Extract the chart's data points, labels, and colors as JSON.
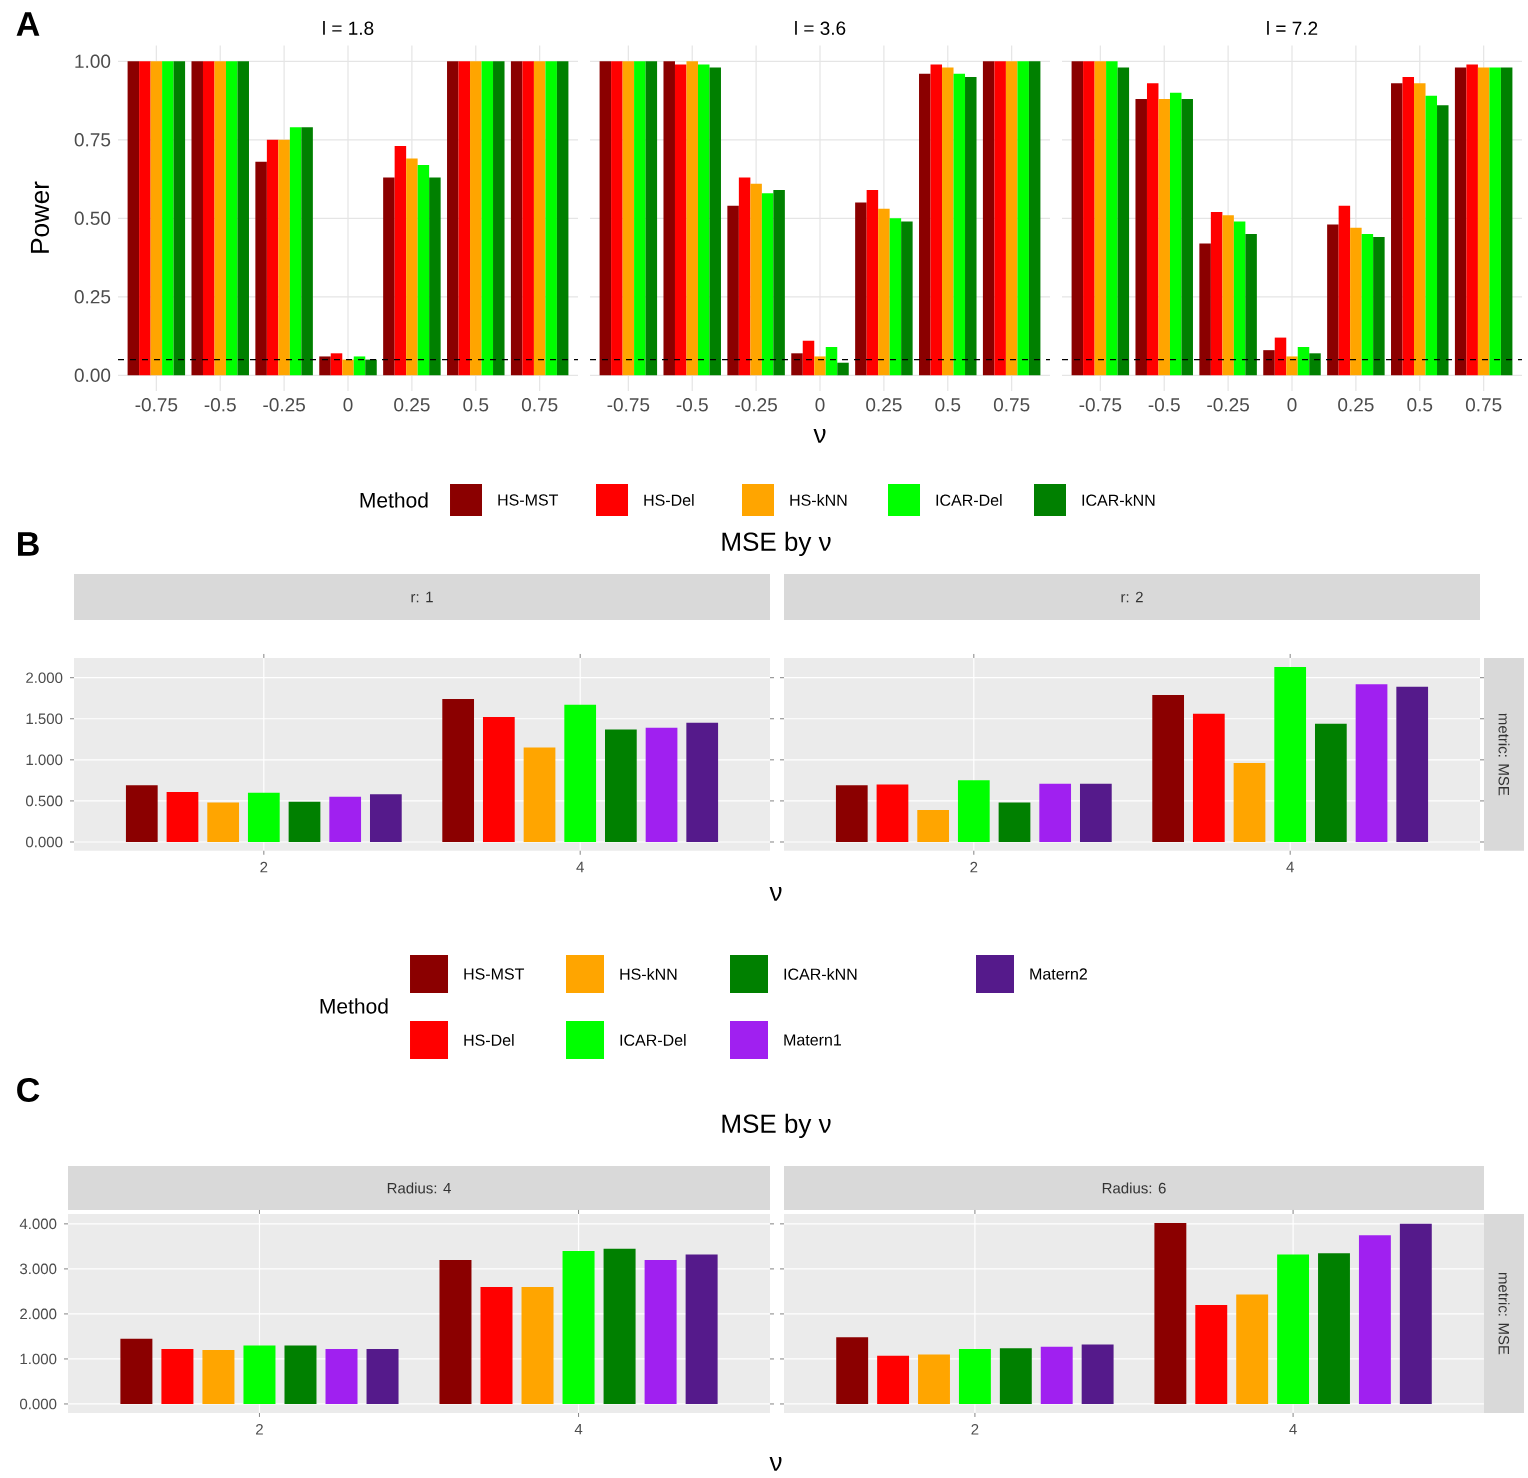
{
  "chart_data": [
    {
      "type": "bar",
      "title": "l = 1.8",
      "ylabel": "Power",
      "annotations": [
        "A"
      ],
      "categories": [
        "-0.75",
        "-0.5",
        "-0.25",
        "0",
        "0.25",
        "0.5",
        "0.75"
      ],
      "ylim": [
        -0.05,
        1.05
      ],
      "yticks": [
        {
          "value": 0,
          "label": "0.00"
        },
        {
          "value": 0.25,
          "label": "0.25"
        },
        {
          "value": 0.5,
          "label": "0.50"
        },
        {
          "value": 0.75,
          "label": "0.75"
        },
        {
          "value": 1,
          "label": "1.00"
        }
      ],
      "grid": true,
      "ref_lines": [
        {
          "axis": "y",
          "value": 0.05,
          "color": "#000000",
          "line_style": "dashed"
        }
      ],
      "series": [
        {
          "color": "#8b0000",
          "values": [
            1,
            1,
            0.68,
            0.06,
            0.63,
            1,
            1
          ]
        },
        {
          "color": "#ff0000",
          "values": [
            1,
            1,
            0.75,
            0.07,
            0.73,
            1,
            1
          ]
        },
        {
          "color": "#ffa500",
          "values": [
            1,
            1,
            0.75,
            0.05,
            0.69,
            1,
            1
          ]
        },
        {
          "color": "#00ff00",
          "values": [
            1,
            1,
            0.79,
            0.06,
            0.67,
            1,
            1
          ]
        },
        {
          "color": "#008000",
          "values": [
            1,
            1,
            0.79,
            0.05,
            0.63,
            1,
            1
          ]
        }
      ]
    },
    {
      "type": "bar",
      "title": "l = 3.6",
      "xlabel": "ν",
      "legend_title": "Method",
      "legend": "bottom",
      "tick_labels": "x",
      "categories": [
        "-0.75",
        "-0.5",
        "-0.25",
        "0",
        "0.25",
        "0.5",
        "0.75"
      ],
      "ylim": [
        -0.05,
        1.05
      ],
      "yticks": [
        {
          "value": 0,
          "label": null
        },
        {
          "value": 0.25,
          "label": null
        },
        {
          "value": 0.5,
          "label": null
        },
        {
          "value": 0.75,
          "label": null
        },
        {
          "value": 1,
          "label": null
        }
      ],
      "grid": true,
      "ref_lines": [
        {
          "axis": "y",
          "value": 0.05,
          "color": "#000000",
          "line_style": "dashed"
        }
      ],
      "series": [
        {
          "name": "HS-MST",
          "color": "#8b0000",
          "values": [
            1,
            1,
            0.54,
            0.07,
            0.55,
            0.96,
            1
          ]
        },
        {
          "name": "HS-Del",
          "color": "#ff0000",
          "values": [
            1,
            0.99,
            0.63,
            0.11,
            0.59,
            0.99,
            1
          ]
        },
        {
          "name": "HS-kNN",
          "color": "#ffa500",
          "values": [
            1,
            1,
            0.61,
            0.06,
            0.53,
            0.98,
            1
          ]
        },
        {
          "name": "ICAR-Del",
          "color": "#00ff00",
          "values": [
            1,
            0.99,
            0.58,
            0.09,
            0.5,
            0.96,
            1
          ]
        },
        {
          "name": "ICAR-kNN",
          "color": "#008000",
          "values": [
            1,
            0.98,
            0.59,
            0.04,
            0.49,
            0.95,
            1
          ]
        }
      ]
    },
    {
      "type": "bar",
      "title": "l = 7.2",
      "tick_labels": "x",
      "categories": [
        "-0.75",
        "-0.5",
        "-0.25",
        "0",
        "0.25",
        "0.5",
        "0.75"
      ],
      "ylim": [
        -0.05,
        1.05
      ],
      "yticks": [
        {
          "value": 0,
          "label": null
        },
        {
          "value": 0.25,
          "label": null
        },
        {
          "value": 0.5,
          "label": null
        },
        {
          "value": 0.75,
          "label": null
        },
        {
          "value": 1,
          "label": null
        }
      ],
      "grid": true,
      "ref_lines": [
        {
          "axis": "y",
          "value": 0.05,
          "color": "#000000",
          "line_style": "dashed"
        }
      ],
      "series": [
        {
          "color": "#8b0000",
          "values": [
            1,
            0.88,
            0.42,
            0.08,
            0.48,
            0.93,
            0.98
          ]
        },
        {
          "color": "#ff0000",
          "values": [
            1,
            0.93,
            0.52,
            0.12,
            0.54,
            0.95,
            0.99
          ]
        },
        {
          "color": "#ffa500",
          "values": [
            1,
            0.88,
            0.51,
            0.06,
            0.47,
            0.93,
            0.98
          ]
        },
        {
          "color": "#00ff00",
          "values": [
            1,
            0.9,
            0.49,
            0.09,
            0.45,
            0.89,
            0.98
          ]
        },
        {
          "color": "#008000",
          "values": [
            0.98,
            0.88,
            0.45,
            0.07,
            0.44,
            0.86,
            0.98
          ]
        }
      ]
    },
    {
      "type": "bar",
      "title": "MSE by ν",
      "subtitle": "r: 1",
      "xlabel": "ν",
      "legend_title": "Method",
      "legend": "bottom",
      "annotations": [
        "B"
      ],
      "categories": [
        "2",
        "4"
      ],
      "ylim": [
        -0.107,
        2.24
      ],
      "yticks": [
        {
          "value": 0,
          "label": "0.000"
        },
        {
          "value": 0.5,
          "label": "0.500"
        },
        {
          "value": 1,
          "label": "1.000"
        },
        {
          "value": 1.5,
          "label": "1.500"
        },
        {
          "value": 2,
          "label": "2.000"
        }
      ],
      "grid": true,
      "series": [
        {
          "name": "HS-MST",
          "color": "#8b0000",
          "values": [
            0.69,
            1.74
          ]
        },
        {
          "name": "HS-Del",
          "color": "#ff0000",
          "values": [
            0.61,
            1.52
          ]
        },
        {
          "name": "HS-kNN",
          "color": "#ffa500",
          "values": [
            0.48,
            1.15
          ]
        },
        {
          "name": "ICAR-Del",
          "color": "#00ff00",
          "values": [
            0.6,
            1.67
          ]
        },
        {
          "name": "ICAR-kNN",
          "color": "#008000",
          "values": [
            0.49,
            1.37
          ]
        },
        {
          "name": "Matern1",
          "color": "#a020f0",
          "values": [
            0.55,
            1.39
          ]
        },
        {
          "name": "Matern2",
          "color": "#551a8b",
          "values": [
            0.58,
            1.45
          ]
        }
      ]
    },
    {
      "type": "bar",
      "subtitle": "r: 2",
      "annotations": [
        "metric: MSE"
      ],
      "tick_labels": "x",
      "categories": [
        "2",
        "4"
      ],
      "ylim": [
        -0.107,
        2.24
      ],
      "yticks": [
        {
          "value": 0,
          "label": null
        },
        {
          "value": 0.5,
          "label": null
        },
        {
          "value": 1,
          "label": null
        },
        {
          "value": 1.5,
          "label": null
        },
        {
          "value": 2,
          "label": null
        }
      ],
      "grid": true,
      "series": [
        {
          "color": "#8b0000",
          "values": [
            0.69,
            1.79
          ]
        },
        {
          "color": "#ff0000",
          "values": [
            0.7,
            1.56
          ]
        },
        {
          "color": "#ffa500",
          "values": [
            0.39,
            0.96
          ]
        },
        {
          "color": "#00ff00",
          "values": [
            0.75,
            2.13
          ]
        },
        {
          "color": "#008000",
          "values": [
            0.48,
            1.44
          ]
        },
        {
          "color": "#a020f0",
          "values": [
            0.71,
            1.92
          ]
        },
        {
          "color": "#551a8b",
          "values": [
            0.71,
            1.89
          ]
        }
      ]
    },
    {
      "type": "bar",
      "title": "MSE by ν",
      "subtitle": "Radius: 4",
      "xlabel": "ν",
      "annotations": [
        "C"
      ],
      "categories": [
        "2",
        "4"
      ],
      "ylim": [
        -0.2,
        4.22
      ],
      "yticks": [
        {
          "value": 0,
          "label": "0.000"
        },
        {
          "value": 1,
          "label": "1.000"
        },
        {
          "value": 2,
          "label": "2.000"
        },
        {
          "value": 3,
          "label": "3.000"
        },
        {
          "value": 4,
          "label": "4.000"
        }
      ],
      "grid": true,
      "series": [
        {
          "color": "#8b0000",
          "values": [
            1.45,
            3.2
          ]
        },
        {
          "color": "#ff0000",
          "values": [
            1.22,
            2.6
          ]
        },
        {
          "color": "#ffa500",
          "values": [
            1.2,
            2.6
          ]
        },
        {
          "color": "#00ff00",
          "values": [
            1.3,
            3.4
          ]
        },
        {
          "color": "#008000",
          "values": [
            1.3,
            3.45
          ]
        },
        {
          "color": "#a020f0",
          "values": [
            1.22,
            3.2
          ]
        },
        {
          "color": "#551a8b",
          "values": [
            1.22,
            3.32
          ]
        }
      ]
    },
    {
      "type": "bar",
      "subtitle": "Radius: 6",
      "annotations": [
        "metric: MSE"
      ],
      "tick_labels": "x",
      "categories": [
        "2",
        "4"
      ],
      "ylim": [
        -0.2,
        4.22
      ],
      "yticks": [
        {
          "value": 0,
          "label": null
        },
        {
          "value": 1,
          "label": null
        },
        {
          "value": 2,
          "label": null
        },
        {
          "value": 3,
          "label": null
        },
        {
          "value": 4,
          "label": null
        }
      ],
      "grid": true,
      "series": [
        {
          "color": "#8b0000",
          "values": [
            1.48,
            4.02
          ]
        },
        {
          "color": "#ff0000",
          "values": [
            1.07,
            2.2
          ]
        },
        {
          "color": "#ffa500",
          "values": [
            1.1,
            2.43
          ]
        },
        {
          "color": "#00ff00",
          "values": [
            1.22,
            3.32
          ]
        },
        {
          "color": "#008000",
          "values": [
            1.24,
            3.35
          ]
        },
        {
          "color": "#a020f0",
          "values": [
            1.27,
            3.75
          ]
        },
        {
          "color": "#551a8b",
          "values": [
            1.32,
            4.0
          ]
        }
      ]
    }
  ]
}
